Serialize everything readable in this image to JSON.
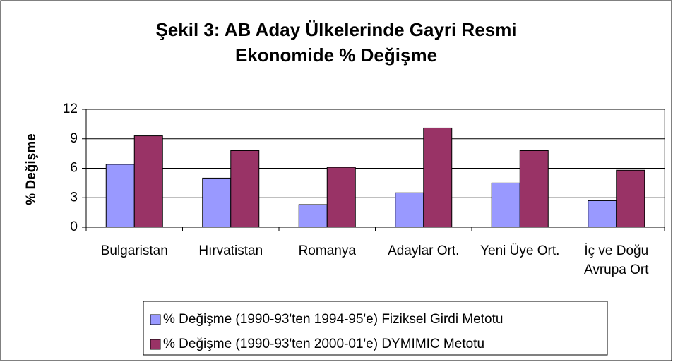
{
  "chart_data": {
    "type": "bar",
    "title": "Şekil 3: AB Aday Ülkelerinde Gayri Resmi Ekonomide % Değişme",
    "y_label": "% Değişme",
    "categories": [
      "Bulgaristan",
      "Hırvatistan",
      "Romanya",
      "Adaylar Ort.",
      "Yeni Üye Ort.",
      "İç ve Doğu Avrupa Ort"
    ],
    "series": [
      {
        "name": "% Değişme (1990-93'ten 1994-95'e) Fiziksel Girdi Metotu",
        "color": "#9999ff",
        "values": [
          6.4,
          5.0,
          2.3,
          3.5,
          4.5,
          2.7
        ]
      },
      {
        "name": "% Değişme (1990-93'ten 2000-01'e) DYMIMIC Metotu",
        "color": "#993366",
        "values": [
          9.3,
          7.8,
          6.1,
          10.1,
          7.8,
          5.8
        ]
      }
    ],
    "ylim": [
      0,
      12
    ],
    "yticks": [
      0,
      3,
      6,
      9,
      12
    ],
    "grid": true,
    "legend": "bottom"
  }
}
